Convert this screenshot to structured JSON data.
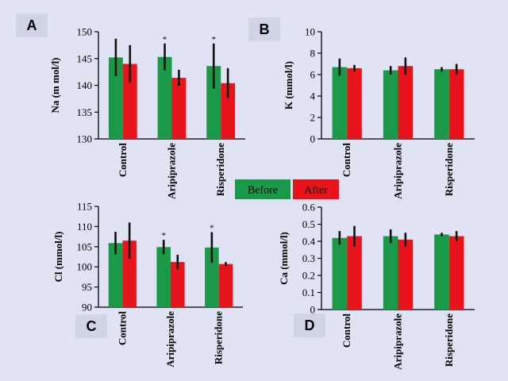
{
  "colors": {
    "before": "#1a9a48",
    "after": "#e8141c",
    "label_box": "#cfd4e6"
  },
  "legend": {
    "before": "Before",
    "after": "After"
  },
  "chart_data": [
    {
      "panel": "A",
      "type": "bar",
      "ylabel": "Na (m mol/l)",
      "ylim": [
        130,
        150
      ],
      "yticks": [
        130,
        135,
        140,
        145,
        150
      ],
      "categories": [
        "Control",
        "Aripiprazole",
        "Risperidone"
      ],
      "series": [
        {
          "name": "Before",
          "values": [
            145.2,
            145.3,
            143.6
          ],
          "errors": [
            3.5,
            2.5,
            4.2
          ]
        },
        {
          "name": "After",
          "values": [
            144.0,
            141.4,
            140.4
          ],
          "errors": [
            3.5,
            1.5,
            2.8
          ]
        }
      ],
      "annotations": [
        "",
        "*",
        "*"
      ]
    },
    {
      "panel": "B",
      "type": "bar",
      "ylabel": "K (mmol/l)",
      "ylim": [
        0,
        10
      ],
      "yticks": [
        0,
        2,
        4,
        6,
        8,
        10
      ],
      "categories": [
        "Control",
        "Aripiprazole",
        "Risperidone"
      ],
      "series": [
        {
          "name": "Before",
          "values": [
            6.7,
            6.4,
            6.5
          ],
          "errors": [
            0.8,
            0.4,
            0.2
          ]
        },
        {
          "name": "After",
          "values": [
            6.6,
            6.8,
            6.5
          ],
          "errors": [
            0.3,
            0.8,
            0.5
          ]
        }
      ],
      "annotations": [
        "",
        "",
        ""
      ]
    },
    {
      "panel": "C",
      "type": "bar",
      "ylabel": "Cl (mmol/l)",
      "ylim": [
        90,
        115
      ],
      "yticks": [
        90,
        95,
        100,
        105,
        110,
        115
      ],
      "categories": [
        "Control",
        "Aripiprazole",
        "Risperidone"
      ],
      "series": [
        {
          "name": "Before",
          "values": [
            105.9,
            104.9,
            104.8
          ],
          "errors": [
            2.8,
            1.8,
            3.8
          ]
        },
        {
          "name": "After",
          "values": [
            106.5,
            101.2,
            100.7
          ],
          "errors": [
            4.5,
            1.8,
            0.5
          ]
        }
      ],
      "annotations": [
        "",
        "*",
        "*"
      ]
    },
    {
      "panel": "D",
      "type": "bar",
      "ylabel": "Ca (mmol/l)",
      "ylim": [
        0,
        0.6
      ],
      "yticks": [
        "0",
        "0.1",
        "0.2",
        "0.3",
        "0.4",
        "0.5",
        "0.6"
      ],
      "categories": [
        "Control",
        "Aripiprazole",
        "Risperidone"
      ],
      "series": [
        {
          "name": "Before",
          "values": [
            0.42,
            0.43,
            0.44
          ],
          "errors": [
            0.04,
            0.04,
            0.01
          ]
        },
        {
          "name": "After",
          "values": [
            0.43,
            0.41,
            0.43
          ],
          "errors": [
            0.06,
            0.04,
            0.03
          ]
        }
      ],
      "annotations": [
        "",
        "",
        ""
      ]
    }
  ]
}
